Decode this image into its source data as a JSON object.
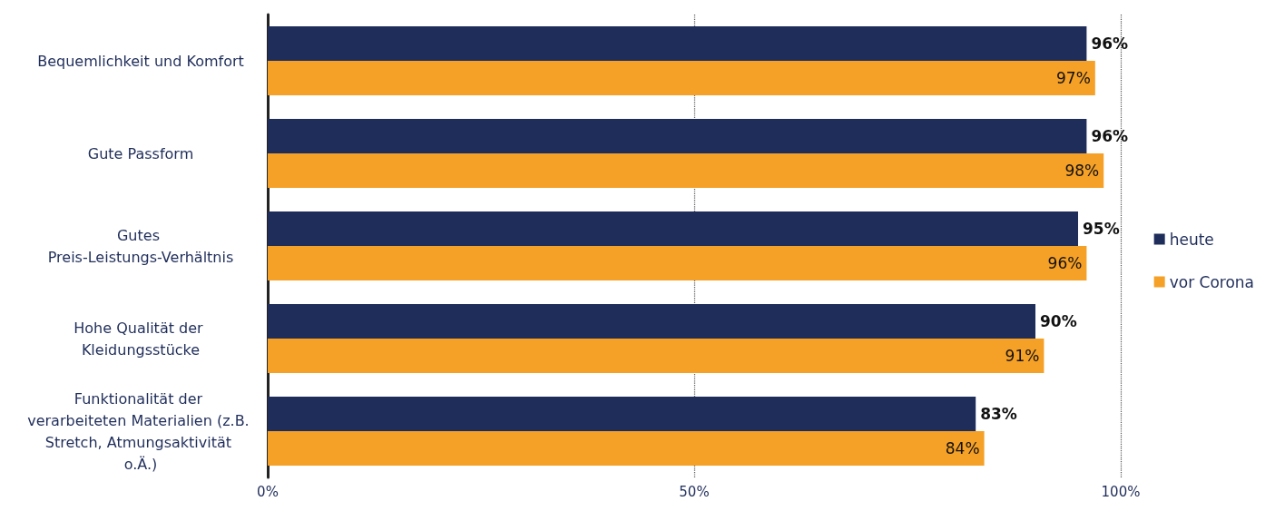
{
  "chart_data": {
    "type": "bar",
    "orientation": "horizontal",
    "categories": [
      "Bequemlichkeit und Komfort",
      "Gute Passform",
      "Gutes Preis-Leistungs-Verhältnis",
      "Hohe Qualität der Kleidungsstücke",
      "Funktionalität der verarbeiteten Materialien (z.B. Stretch, Atmungsaktivität o.Ä.)"
    ],
    "series": [
      {
        "name": "heute",
        "color": "#1f2d5a",
        "values": [
          96,
          96,
          95,
          90,
          83
        ],
        "value_labels": [
          "96%",
          "96%",
          "95%",
          "90%",
          "83%"
        ]
      },
      {
        "name": "vor Corona",
        "color": "#f5a026",
        "values": [
          97,
          98,
          96,
          91,
          84
        ],
        "value_labels": [
          "97%",
          "98%",
          "96%",
          "91%",
          "84%"
        ]
      }
    ],
    "xlim": [
      0,
      100
    ],
    "xticks": [
      {
        "value": 0,
        "label": "0%"
      },
      {
        "value": 50,
        "label": "50%"
      },
      {
        "value": 100,
        "label": "100%"
      }
    ],
    "grid": "x",
    "legend": "right"
  }
}
